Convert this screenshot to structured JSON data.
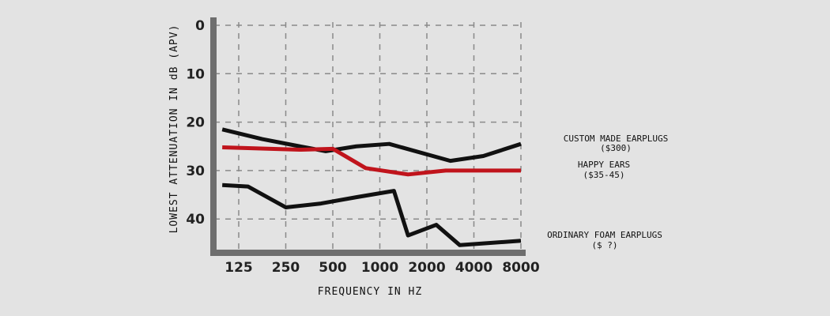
{
  "chart_data": {
    "type": "line",
    "xlabel": "FREQUENCY IN HZ",
    "ylabel": "LOWEST ATTENUATION IN dB (APV)",
    "x_scale": "categorical",
    "categories": [
      "125",
      "250",
      "500",
      "1000",
      "2000",
      "4000",
      "8000"
    ],
    "y_ticks": [
      0,
      10,
      20,
      30,
      40
    ],
    "ylim": [
      0,
      47
    ],
    "y_inverted": true,
    "grid": true,
    "series": [
      {
        "name": "CUSTOM MADE EARPLUGS",
        "price": "($300)",
        "color": "#111111",
        "x": [
          -0.35,
          0.5,
          1.3,
          1.85,
          2.5,
          3.2,
          4.5,
          5.2,
          6.0
        ],
        "values": [
          21.5,
          23.5,
          25,
          26,
          25,
          24.5,
          28,
          27,
          24.5
        ]
      },
      {
        "name": "HAPPY EARS",
        "price": "($35-45)",
        "color": "#c0141c",
        "x": [
          -0.35,
          1.3,
          2.0,
          2.7,
          3.6,
          4.4,
          5.3,
          6.0
        ],
        "values": [
          25.2,
          25.7,
          25.5,
          29.5,
          30.8,
          30,
          30,
          30
        ]
      },
      {
        "name": "ORDINARY FOAM EARPLUGS",
        "price": "($ ?)",
        "color": "#111111",
        "x": [
          -0.35,
          0.2,
          1.0,
          1.75,
          2.5,
          3.3,
          3.6,
          4.2,
          4.7,
          6.0
        ],
        "values": [
          33,
          33.3,
          37.6,
          36.8,
          35.5,
          34.2,
          43.4,
          41.2,
          45.4,
          44.5
        ]
      }
    ]
  }
}
